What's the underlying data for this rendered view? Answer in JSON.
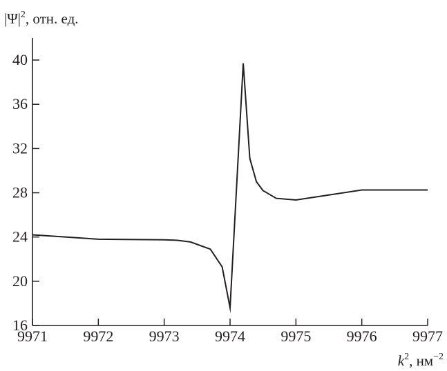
{
  "chart_data": {
    "type": "line",
    "title": "",
    "ylabel": {
      "base": "|Ψ|",
      "exponent": "2",
      "units": ", отн. ед."
    },
    "xlabel": {
      "base": "k",
      "exponent": "2",
      "units": ", нм",
      "units_exponent": "−2"
    },
    "xlim": [
      9971,
      9977
    ],
    "ylim": [
      16,
      42
    ],
    "xticks": [
      "9971",
      "9972",
      "9973",
      "9974",
      "9975",
      "9976",
      "9977"
    ],
    "yticks": [
      "16",
      "20",
      "24",
      "28",
      "32",
      "36",
      "40"
    ],
    "grid": false,
    "line_color": "#231f20",
    "series": [
      {
        "x": [
          9971.0,
          9972.0,
          9973.0,
          9973.2,
          9973.4,
          9973.7,
          9973.88,
          9974.0,
          9974.2,
          9974.3,
          9974.4,
          9974.5,
          9974.7,
          9975.0,
          9975.5,
          9976.0,
          9976.5,
          9977.0
        ],
        "y": [
          24.2,
          23.8,
          23.75,
          23.7,
          23.55,
          22.9,
          21.3,
          17.6,
          39.7,
          31.1,
          29.0,
          28.2,
          27.5,
          27.35,
          27.8,
          28.25,
          28.25,
          28.25
        ]
      }
    ]
  }
}
